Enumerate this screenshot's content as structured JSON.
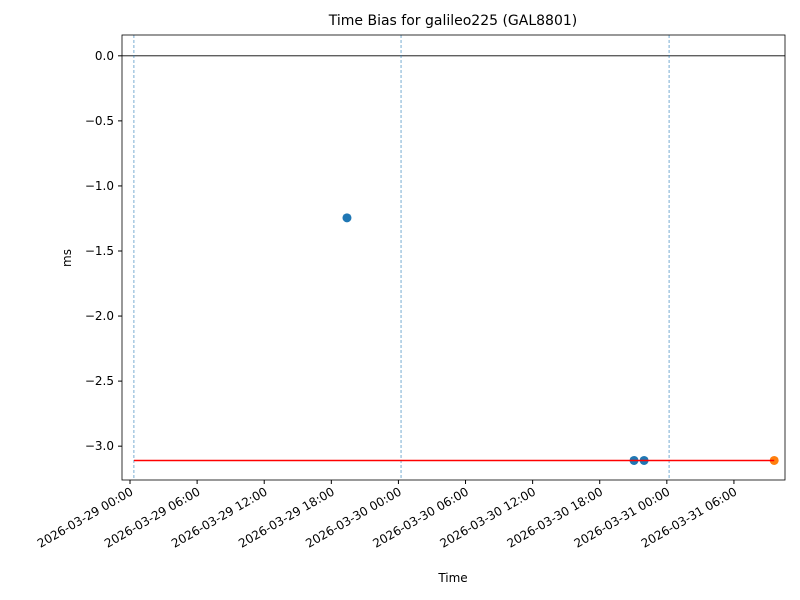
{
  "chart_data": {
    "type": "scatter",
    "title": "Time Bias for galileo225 (GAL8801)",
    "xlabel": "Time",
    "ylabel": "ms",
    "xlim": [
      "2026-03-28 23:17",
      "2026-03-31 10:34"
    ],
    "ylim": [
      -3.26,
      0.16
    ],
    "xticks": [
      "2026-03-29 00:00",
      "2026-03-29 06:00",
      "2026-03-29 12:00",
      "2026-03-29 18:00",
      "2026-03-30 00:00",
      "2026-03-30 06:00",
      "2026-03-30 12:00",
      "2026-03-30 18:00",
      "2026-03-31 00:00",
      "2026-03-31 06:00"
    ],
    "yticks": [
      {
        "value": 0,
        "label": "0.0"
      },
      {
        "value": -0.5,
        "label": "−0.5"
      },
      {
        "value": -1,
        "label": "−1.0"
      },
      {
        "value": -1.5,
        "label": "−1.5"
      },
      {
        "value": -2,
        "label": "−2.0"
      },
      {
        "value": -2.5,
        "label": "−2.5"
      },
      {
        "value": -3,
        "label": "−3.0"
      }
    ],
    "hline": {
      "value": 0,
      "color": "#000000"
    },
    "vlines": {
      "x": [
        "2026-03-29 00:21",
        "2026-03-30 00:14",
        "2026-03-31 00:12"
      ],
      "color": "#1f77b4"
    },
    "series": [
      {
        "mode": "markers",
        "color": "#1f77b4",
        "x": [
          "2026-03-29 19:24",
          "2026-03-30 21:04",
          "2026-03-30 21:58"
        ],
        "values": [
          -1.245,
          -3.11,
          -3.11
        ]
      },
      {
        "mode": "markers",
        "color": "#ff7f0e",
        "x": [
          "2026-03-31 09:36"
        ],
        "values": [
          -3.11
        ]
      },
      {
        "mode": "line",
        "color": "#ff0000",
        "x": [
          "2026-03-29 00:21",
          "2026-03-31 09:36"
        ],
        "values": [
          -3.11,
          -3.11
        ]
      }
    ]
  }
}
